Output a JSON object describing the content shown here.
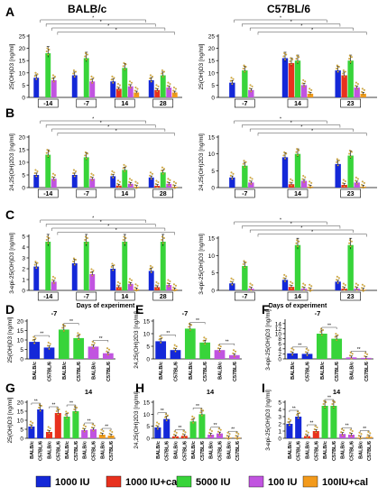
{
  "strain_headers": [
    "BALB/c",
    "C57BL/6"
  ],
  "legend": [
    {
      "label": "1000 IU",
      "color": "#1428d8"
    },
    {
      "label": "1000 IU+cal",
      "color": "#e8311e"
    },
    {
      "label": "5000 IU",
      "color": "#38d43a"
    },
    {
      "label": "100 IU",
      "color": "#c154e0"
    },
    {
      "label": "100IU+cal",
      "color": "#f39a1b"
    }
  ],
  "chart_data": [
    {
      "panel": "A",
      "type": "bar",
      "strain": "BALB/c",
      "ylabel": "25(OH)D3 [ng/ml]",
      "xlabel": "",
      "ylim": [
        0,
        25
      ],
      "yticks": [
        0,
        5,
        10,
        15,
        20,
        25
      ],
      "categories": [
        "-14",
        "-7",
        "14",
        "28"
      ],
      "series": [
        {
          "group": "1000 IU",
          "values": [
            8,
            9,
            6.5,
            7
          ]
        },
        {
          "group": "1000 IU+cal",
          "values": [
            null,
            null,
            3.5,
            3
          ]
        },
        {
          "group": "5000 IU",
          "values": [
            18,
            16,
            12,
            9
          ]
        },
        {
          "group": "100 IU",
          "values": [
            7,
            6.5,
            4.5,
            4
          ]
        },
        {
          "group": "100IU+cal",
          "values": [
            null,
            null,
            2,
            2
          ]
        }
      ]
    },
    {
      "panel": "A",
      "type": "bar",
      "strain": "C57BL/6",
      "ylabel": "25(OH)D3 [ng/ml]",
      "xlabel": "",
      "ylim": [
        0,
        25
      ],
      "yticks": [
        0,
        5,
        10,
        15,
        20,
        25
      ],
      "categories": [
        "-7",
        "14",
        "23"
      ],
      "series": [
        {
          "group": "1000 IU",
          "values": [
            6,
            16,
            11
          ]
        },
        {
          "group": "1000 IU+cal",
          "values": [
            null,
            14,
            9
          ]
        },
        {
          "group": "5000 IU",
          "values": [
            11,
            15,
            15
          ]
        },
        {
          "group": "100 IU",
          "values": [
            3,
            5,
            4
          ]
        },
        {
          "group": "100IU+cal",
          "values": [
            null,
            1.5,
            1.5
          ]
        }
      ]
    },
    {
      "panel": "B",
      "type": "bar",
      "strain": "BALB/c",
      "ylabel": "24,25(OH)2D3 [ng/ml]",
      "xlabel": "",
      "ylim": [
        0,
        20
      ],
      "yticks": [
        0,
        5,
        10,
        15,
        20
      ],
      "categories": [
        "-14",
        "-7",
        "14",
        "28"
      ],
      "series": [
        {
          "group": "1000 IU",
          "values": [
            5,
            5,
            4.5,
            4
          ]
        },
        {
          "group": "1000 IU+cal",
          "values": [
            null,
            null,
            0.8,
            0.7
          ]
        },
        {
          "group": "5000 IU",
          "values": [
            13,
            12,
            7,
            6
          ]
        },
        {
          "group": "100 IU",
          "values": [
            3.5,
            3.5,
            1.5,
            1.5
          ]
        },
        {
          "group": "100IU+cal",
          "values": [
            null,
            null,
            0.3,
            0.3
          ]
        }
      ]
    },
    {
      "panel": "B",
      "type": "bar",
      "strain": "C57BL/6",
      "ylabel": "24,25(OH)2D3 [ng/ml]",
      "xlabel": "",
      "ylim": [
        0,
        15
      ],
      "yticks": [
        0,
        5,
        10,
        15
      ],
      "categories": [
        "-7",
        "14",
        "23"
      ],
      "series": [
        {
          "group": "1000 IU",
          "values": [
            3,
            9,
            7
          ]
        },
        {
          "group": "1000 IU+cal",
          "values": [
            null,
            1,
            0.8
          ]
        },
        {
          "group": "5000 IU",
          "values": [
            6.5,
            10,
            9.5
          ]
        },
        {
          "group": "100 IU",
          "values": [
            1.5,
            2,
            1.5
          ]
        },
        {
          "group": "100IU+cal",
          "values": [
            null,
            0.3,
            0.3
          ]
        }
      ]
    },
    {
      "panel": "C",
      "type": "bar",
      "strain": "BALB/c",
      "ylabel": "3-epi-25(OH)D3 [ng/ml]",
      "xlabel": "Days of experiment",
      "ylim": [
        0,
        5
      ],
      "yticks": [
        0,
        1,
        2,
        3,
        4,
        5
      ],
      "categories": [
        "-14",
        "-7",
        "14",
        "28"
      ],
      "series": [
        {
          "group": "1000 IU",
          "values": [
            2.2,
            2.5,
            2,
            1.8
          ]
        },
        {
          "group": "1000 IU+cal",
          "values": [
            null,
            null,
            0.3,
            0.3
          ]
        },
        {
          "group": "5000 IU",
          "values": [
            4.5,
            4.5,
            4.5,
            4.5
          ]
        },
        {
          "group": "100 IU",
          "values": [
            0.8,
            1.5,
            0.6,
            0.5
          ]
        },
        {
          "group": "100IU+cal",
          "values": [
            null,
            null,
            0.1,
            0.1
          ]
        }
      ]
    },
    {
      "panel": "C",
      "type": "bar",
      "strain": "C57BL/6",
      "ylabel": "3-epi-25(OH)D3 [ng/ml]",
      "xlabel": "Days of experiment",
      "ylim": [
        0,
        15
      ],
      "yticks": [
        0,
        5,
        10,
        15
      ],
      "categories": [
        "-7",
        "14",
        "23"
      ],
      "series": [
        {
          "group": "1000 IU",
          "values": [
            2,
            3,
            2.5
          ]
        },
        {
          "group": "1000 IU+cal",
          "values": [
            null,
            1,
            0.5
          ]
        },
        {
          "group": "5000 IU",
          "values": [
            7,
            13,
            13
          ]
        },
        {
          "group": "100 IU",
          "values": [
            0.5,
            0.5,
            0.5
          ]
        },
        {
          "group": "100IU+cal",
          "values": [
            null,
            0.2,
            0.2
          ]
        }
      ]
    },
    {
      "panel": "D",
      "type": "bar",
      "title": "-7",
      "ylabel": "25(OH)D3 [ng/ml]",
      "ylim": [
        0,
        20
      ],
      "yticks": [
        0,
        5,
        10,
        15,
        20
      ],
      "categories": [
        "BALB/c",
        "C57BL/6",
        "BALB/c",
        "C57BL/6",
        "BALB/c",
        "C57BL/6"
      ],
      "colors": [
        "#1428d8",
        "#1428d8",
        "#38d43a",
        "#38d43a",
        "#c154e0",
        "#c154e0"
      ],
      "values": [
        9,
        6,
        15.5,
        11,
        6.5,
        3
      ]
    },
    {
      "panel": "E",
      "type": "bar",
      "title": "-7",
      "ylabel": "24,25(OH)2D3 [ng/ml]",
      "ylim": [
        0,
        15
      ],
      "yticks": [
        0,
        5,
        10,
        15
      ],
      "categories": [
        "BALB/c",
        "C57BL/6",
        "BALB/c",
        "C57BL/6",
        "BALB/c",
        "C57BL/6"
      ],
      "colors": [
        "#1428d8",
        "#1428d8",
        "#38d43a",
        "#38d43a",
        "#c154e0",
        "#c154e0"
      ],
      "values": [
        7,
        3.5,
        12,
        6.5,
        3.5,
        1.5
      ]
    },
    {
      "panel": "F",
      "type": "bar",
      "title": "-7",
      "ylabel": "3-epi-25(OH)D3 [ng/ml]",
      "ylim": [
        0,
        15
      ],
      "yticks": [
        0,
        2,
        4,
        6,
        8,
        10,
        12,
        14
      ],
      "categories": [
        "BALB/c",
        "C57BL/6",
        "BALB/c",
        "C57BL/6",
        "BALB/c",
        "C57BL/6"
      ],
      "colors": [
        "#1428d8",
        "#1428d8",
        "#38d43a",
        "#38d43a",
        "#c154e0",
        "#c154e0"
      ],
      "values": [
        2.2,
        2,
        10,
        8,
        0.6,
        0.4
      ]
    },
    {
      "panel": "G",
      "type": "bar",
      "title": "14",
      "ylabel": "25(OH)D3 [ng/ml]",
      "ylim": [
        0,
        20
      ],
      "yticks": [
        0,
        5,
        10,
        15,
        20
      ],
      "categories": [
        "BALB/c",
        "C57BL/6",
        "BALB/c",
        "C57BL/6",
        "BALB/c",
        "C57BL/6",
        "BALB/c",
        "C57BL/6",
        "BALB/c",
        "C57BL/6"
      ],
      "colors": [
        "#1428d8",
        "#1428d8",
        "#e8311e",
        "#e8311e",
        "#38d43a",
        "#38d43a",
        "#c154e0",
        "#c154e0",
        "#f39a1b",
        "#f39a1b"
      ],
      "values": [
        6.5,
        16,
        3.5,
        14,
        12,
        15,
        4.5,
        5,
        2,
        1.5
      ]
    },
    {
      "panel": "H",
      "type": "bar",
      "title": "14",
      "ylabel": "24,25(OH)2D3 [ng/ml]",
      "ylim": [
        0,
        15
      ],
      "yticks": [
        0,
        5,
        10,
        15
      ],
      "categories": [
        "BALB/c",
        "C57BL/6",
        "BALB/c",
        "C57BL/6",
        "BALB/c",
        "C57BL/6",
        "BALB/c",
        "C57BL/6",
        "BALB/c",
        "C57BL/6"
      ],
      "colors": [
        "#1428d8",
        "#1428d8",
        "#e8311e",
        "#e8311e",
        "#38d43a",
        "#38d43a",
        "#c154e0",
        "#c154e0",
        "#f39a1b",
        "#f39a1b"
      ],
      "values": [
        4.5,
        8,
        0.8,
        1,
        7,
        10,
        1.5,
        2,
        0.3,
        0.3
      ]
    },
    {
      "panel": "I",
      "type": "bar",
      "title": "14",
      "ylabel": "3-epi-25(OH)D3 [ng/ml]",
      "ylim": [
        0,
        5
      ],
      "yticks": [
        0,
        1,
        2,
        3,
        4,
        5
      ],
      "categories": [
        "BALB/c",
        "C57BL/6",
        "BALB/c",
        "C57BL/6",
        "BALB/c",
        "C57BL/6",
        "BALB/c",
        "C57BL/6",
        "BALB/c",
        "C57BL/6"
      ],
      "colors": [
        "#1428d8",
        "#1428d8",
        "#e8311e",
        "#e8311e",
        "#38d43a",
        "#38d43a",
        "#c154e0",
        "#c154e0",
        "#f39a1b",
        "#f39a1b"
      ],
      "values": [
        2,
        3,
        0.3,
        1,
        4.5,
        4.5,
        0.6,
        0.5,
        0.1,
        0.2
      ]
    }
  ]
}
